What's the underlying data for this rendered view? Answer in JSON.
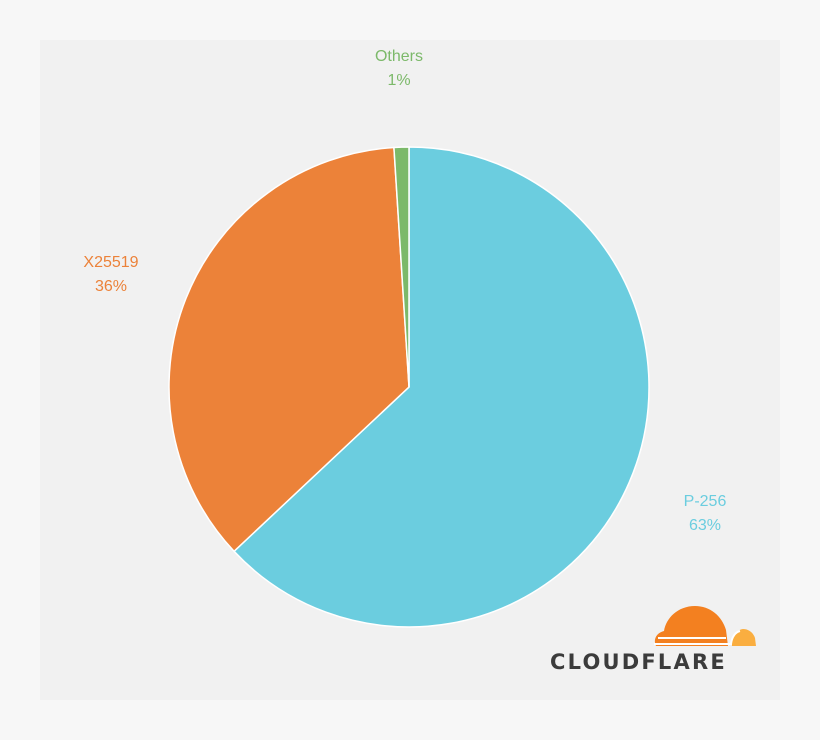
{
  "chart_data": {
    "type": "pie",
    "slices": [
      {
        "label": "P-256",
        "value": 63,
        "display": "63%",
        "color": "#6bcddf"
      },
      {
        "label": "X25519",
        "value": 36,
        "display": "36%",
        "color": "#ec8239"
      },
      {
        "label": "Others",
        "value": 1,
        "display": "1%",
        "color": "#7cb96a"
      }
    ]
  },
  "branding": {
    "logo_text": "CLOUDFLARE",
    "logo_icon": "cloud-icon",
    "logo_colors": {
      "primary": "#f38020",
      "secondary": "#faae40"
    }
  },
  "colors": {
    "page_background": "#f7f7f7",
    "panel_background": "#f1f1f1",
    "slice_border": "#ffffff"
  }
}
